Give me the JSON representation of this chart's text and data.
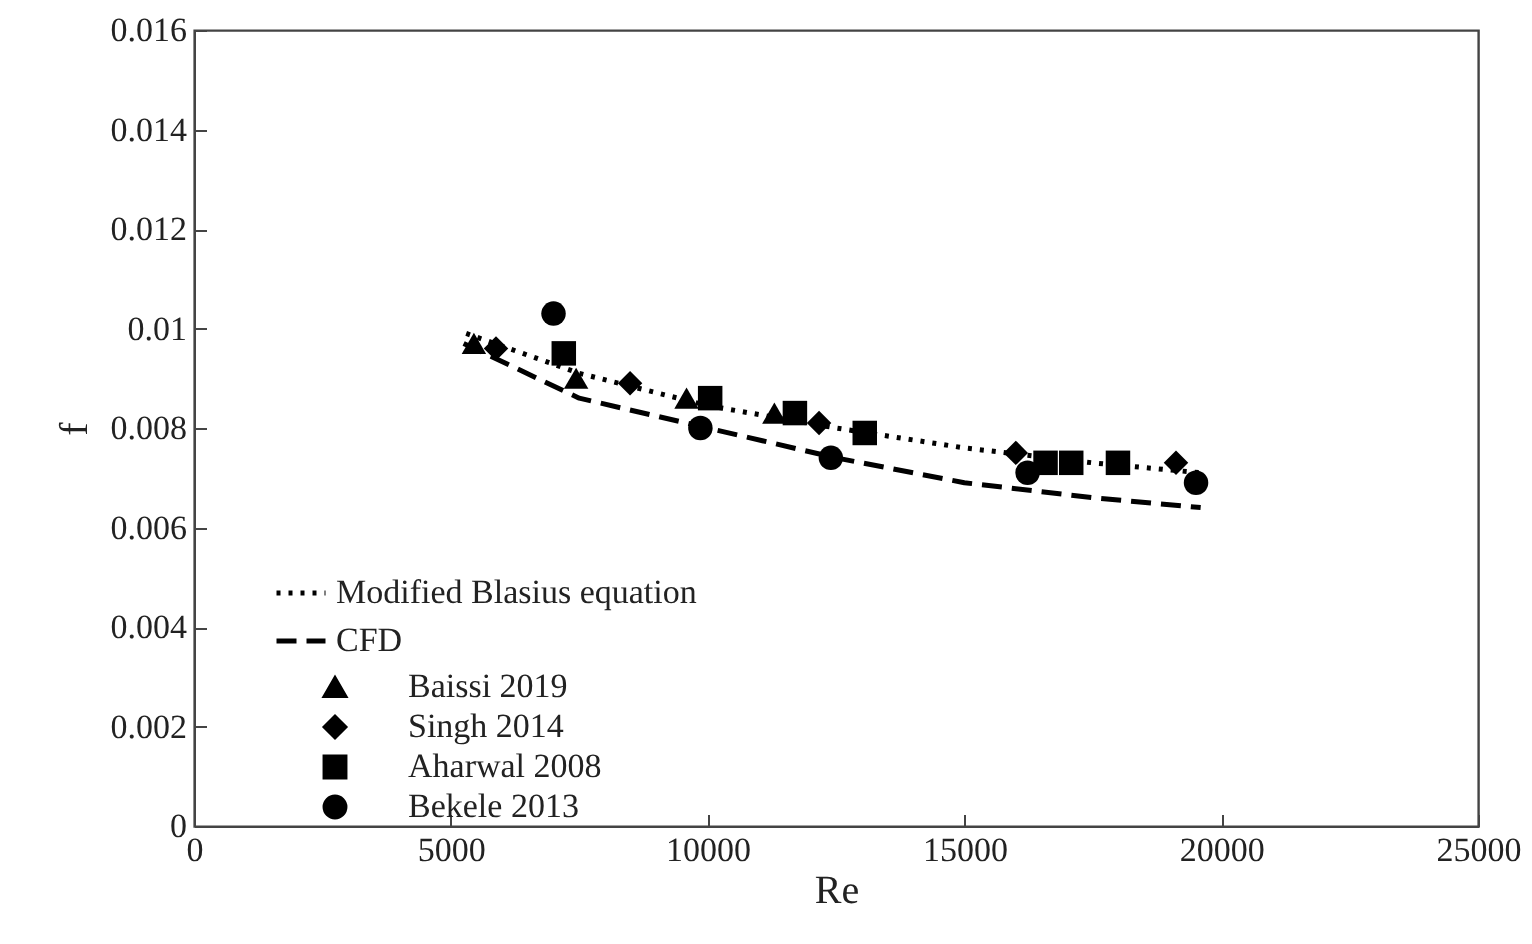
{
  "chart_data": {
    "type": "scatter",
    "xlabel": "Re",
    "ylabel": "f",
    "xlim": [
      0,
      25000
    ],
    "xticks": [
      0,
      5000,
      10000,
      15000,
      20000,
      25000
    ],
    "ylim": [
      0,
      0.016
    ],
    "yticks": [
      0,
      0.002,
      0.004,
      0.006,
      0.008,
      0.01,
      0.012,
      0.014,
      0.016
    ],
    "grid": false,
    "legend": "bottom left",
    "series": [
      {
        "name": "Modified Blasius equation",
        "type": "line",
        "line_style": "dotted",
        "marker": "none",
        "color": "#000000",
        "x": [
          5300,
          7500,
          10000,
          12500,
          15000,
          17500,
          19600
        ],
        "values": [
          0.0099,
          0.0091,
          0.00845,
          0.008,
          0.0076,
          0.0073,
          0.0071
        ]
      },
      {
        "name": "CFD",
        "type": "line",
        "line_style": "dashed",
        "marker": "none",
        "color": "#000000",
        "x": [
          5250,
          7500,
          10000,
          12500,
          15000,
          17500,
          19600
        ],
        "values": [
          0.0097,
          0.0086,
          0.008,
          0.0074,
          0.0069,
          0.0066,
          0.0064
        ]
      },
      {
        "name": "Baissi 2019",
        "marker": "triangle",
        "color": "#000000",
        "x": [
          5450,
          7440,
          9590,
          11300
        ],
        "values": [
          0.0097,
          0.009,
          0.0086,
          0.0083
        ]
      },
      {
        "name": "Singh 2014",
        "marker": "diamond",
        "color": "#000000",
        "x": [
          5880,
          8490,
          12170,
          16000,
          19120
        ],
        "values": [
          0.0096,
          0.0089,
          0.0081,
          0.0075,
          0.0073
        ]
      },
      {
        "name": "Aharwal 2008",
        "marker": "square",
        "color": "#000000",
        "x": [
          7200,
          10050,
          11700,
          13060,
          16580,
          17080,
          17990
        ],
        "values": [
          0.0095,
          0.0086,
          0.0083,
          0.0079,
          0.0073,
          0.0073,
          0.0073
        ]
      },
      {
        "name": "Bekele 2013",
        "marker": "circle",
        "color": "#000000",
        "x": [
          7000,
          9860,
          12400,
          16230,
          19510
        ],
        "values": [
          0.0103,
          0.008,
          0.0074,
          0.0071,
          0.0069
        ]
      }
    ]
  }
}
